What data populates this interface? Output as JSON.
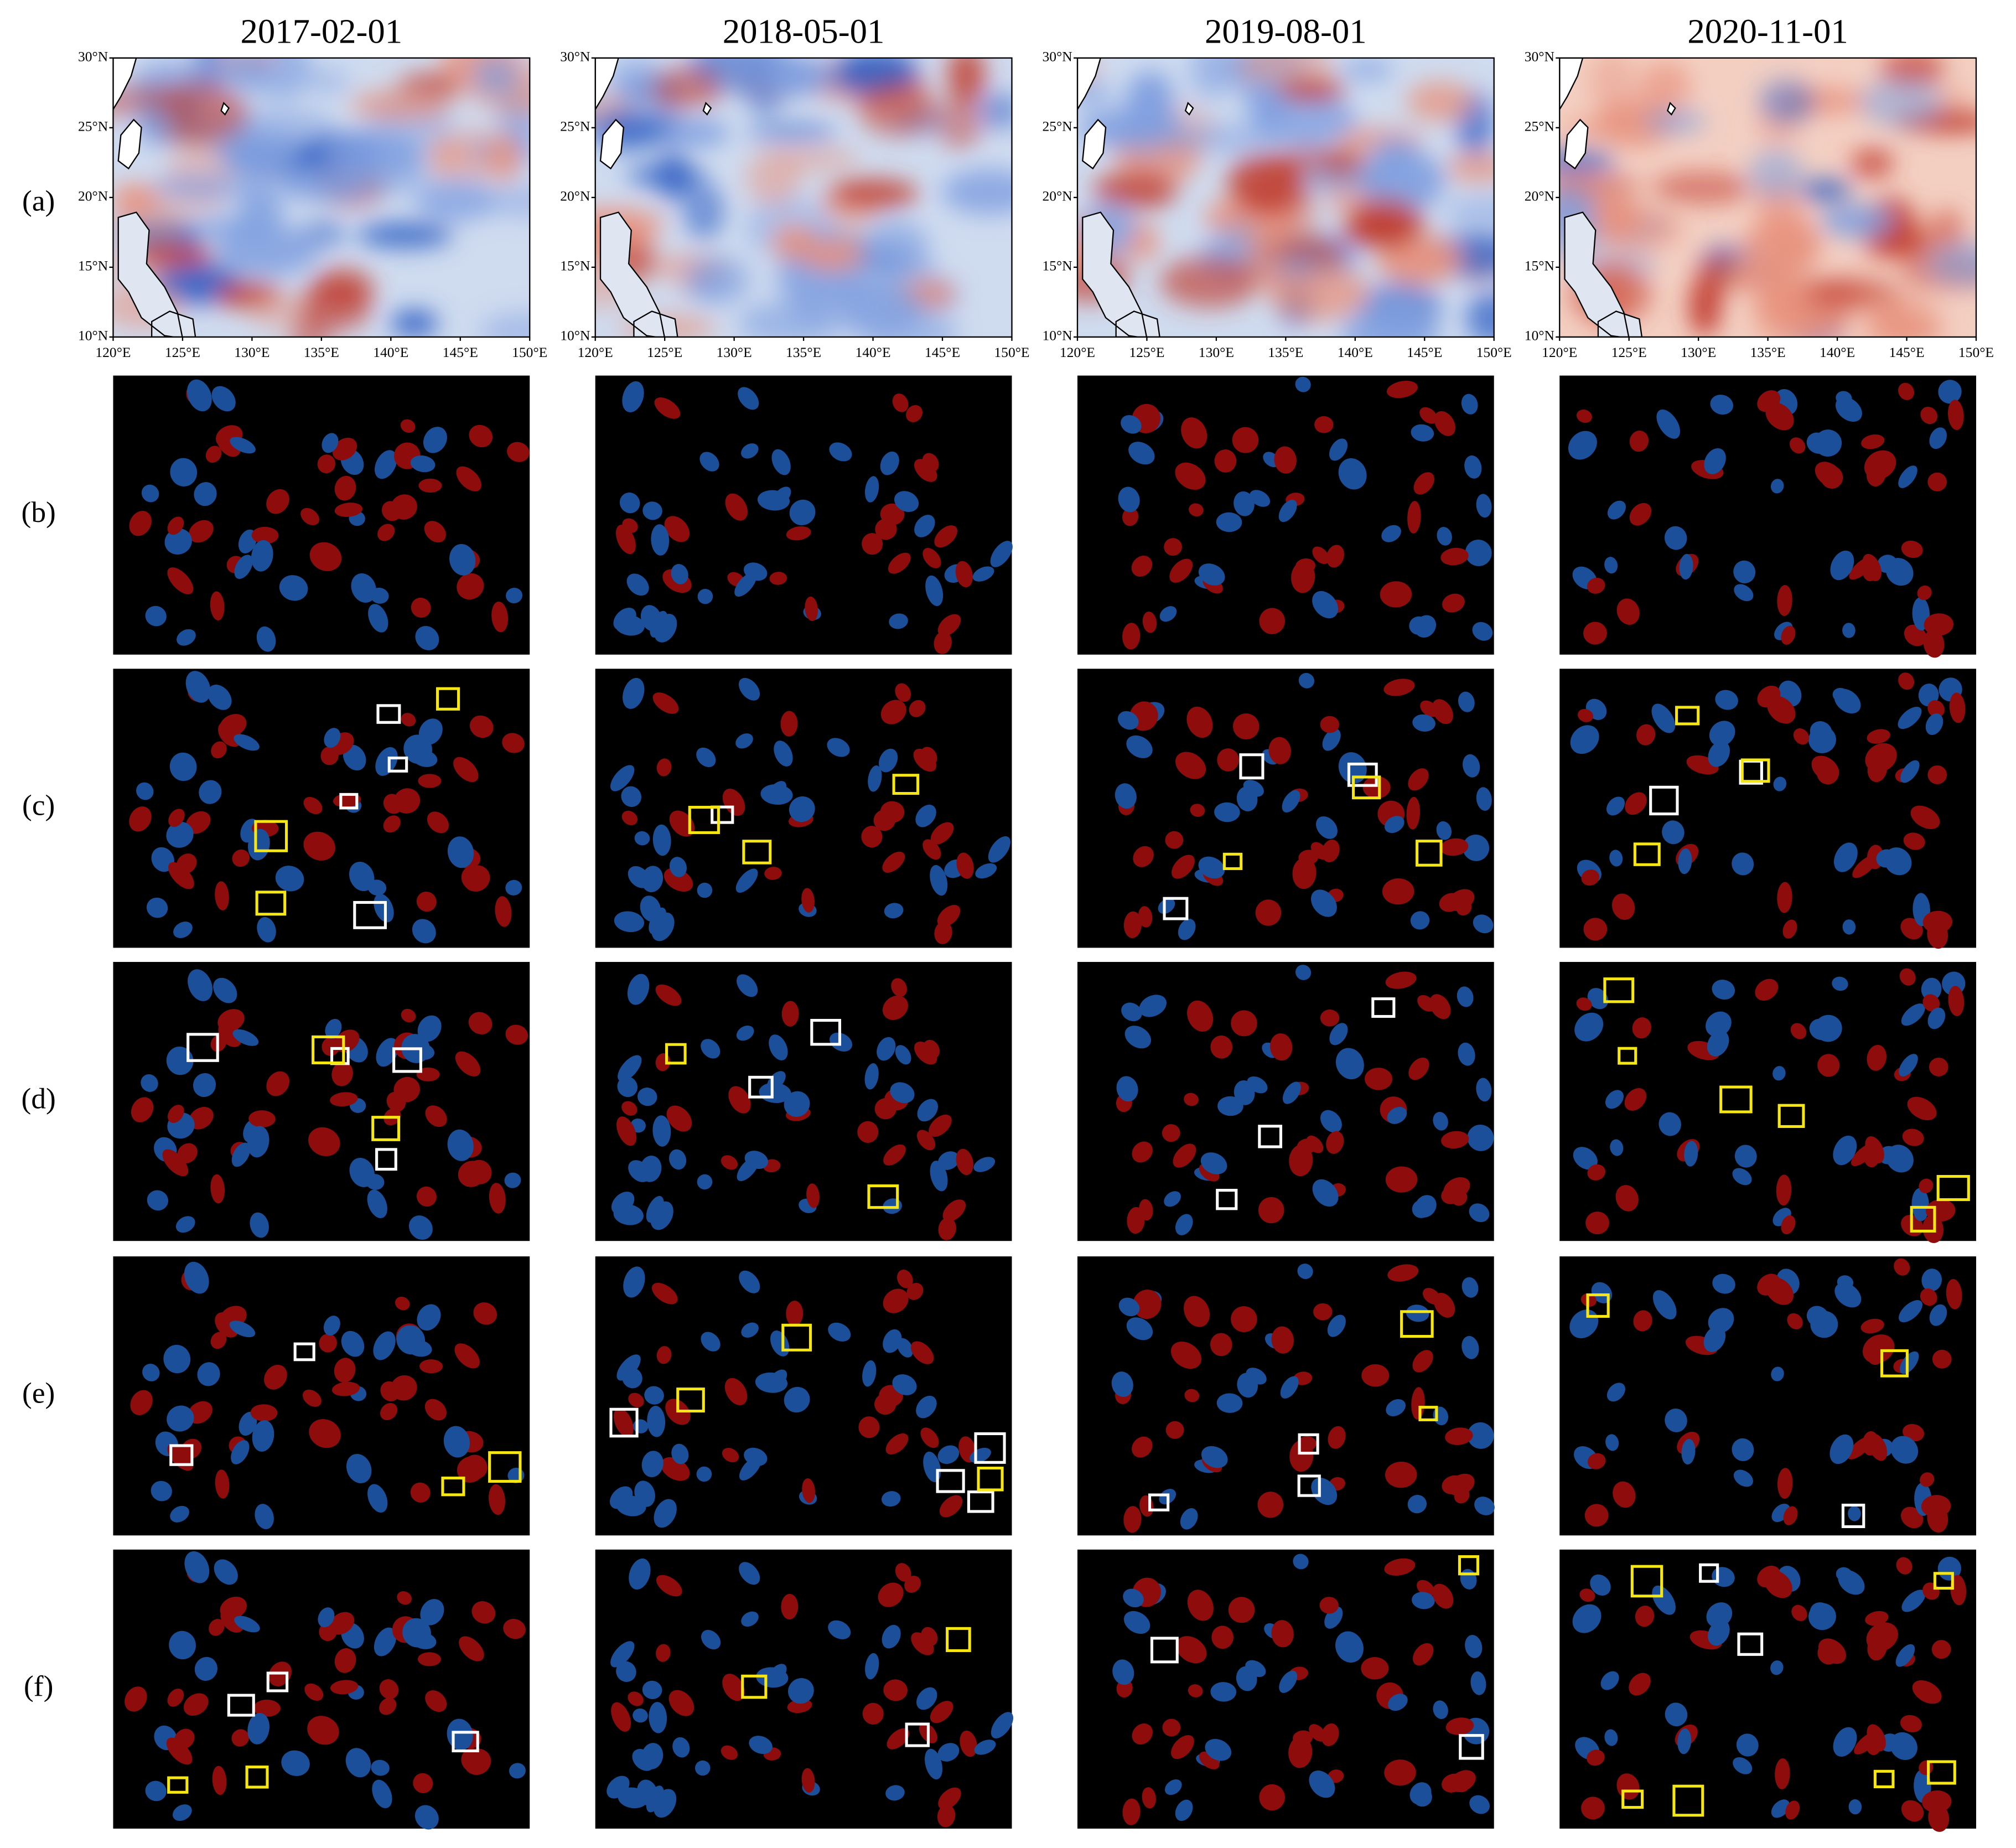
{
  "columns": [
    "2017-02-01",
    "2018-05-01",
    "2019-08-01",
    "2020-11-01"
  ],
  "rows": [
    "(a)",
    "(b)",
    "(c)",
    "(d)",
    "(e)",
    "(f)"
  ],
  "map_axes": {
    "lat_labels": [
      "30°N",
      "25°N",
      "20°N",
      "15°N",
      "10°N"
    ],
    "lon_labels": [
      "120°E",
      "125°E",
      "130°E",
      "135°E",
      "140°E",
      "145°E",
      "150°E"
    ]
  }
}
